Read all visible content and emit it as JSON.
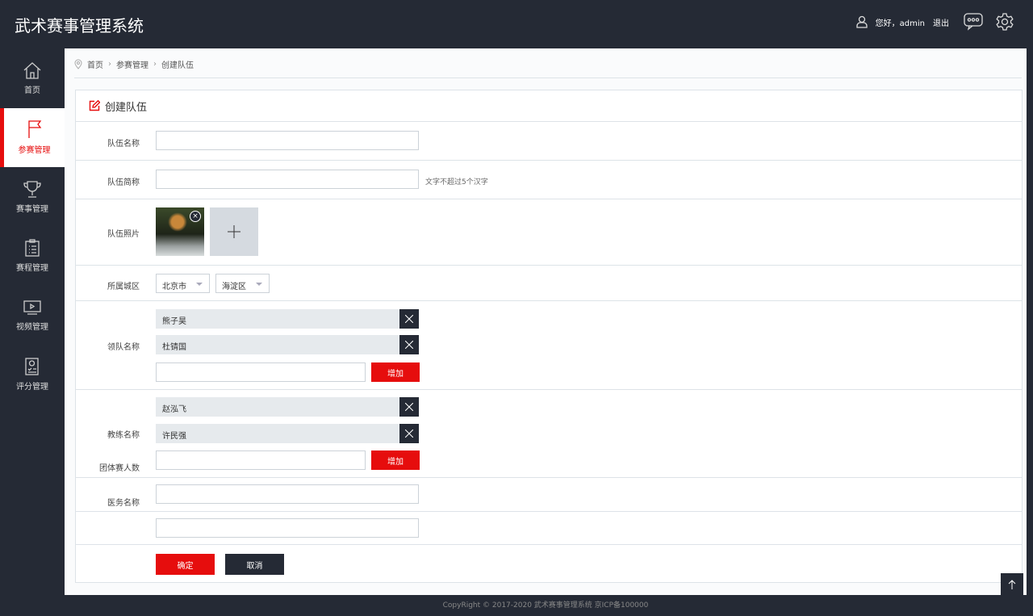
{
  "header": {
    "title": "武术赛事管理系统",
    "greeting": "您好，admin",
    "logout": "退出"
  },
  "sidebar": {
    "items": [
      {
        "label": "首页",
        "icon": "home-icon"
      },
      {
        "label": "参赛管理",
        "icon": "flag-icon",
        "active": true
      },
      {
        "label": "赛事管理",
        "icon": "trophy-icon"
      },
      {
        "label": "赛程管理",
        "icon": "clipboard-icon"
      },
      {
        "label": "视频管理",
        "icon": "video-icon"
      },
      {
        "label": "评分管理",
        "icon": "score-icon"
      }
    ]
  },
  "breadcrumb": [
    "首页",
    "参赛管理",
    "创建队伍"
  ],
  "form": {
    "title": "创建队伍",
    "team_name_label": "队伍名称",
    "team_name_value": "",
    "short_name_label": "队伍简称",
    "short_name_value": "",
    "short_name_hint": "文字不超过5个汉字",
    "photo_label": "队伍照片",
    "region_label": "所属城区",
    "city": "北京市",
    "district": "海淀区",
    "leader_label": "领队名称",
    "leaders": [
      "熊子昊",
      "杜锖国"
    ],
    "coach_label": "教练名称",
    "coaches": [
      "赵泓飞",
      "许民强"
    ],
    "team_count_label": "团体赛人数",
    "add_label": "增加",
    "medic_label": "医务名称",
    "confirm": "确定",
    "cancel": "取消"
  },
  "footer": "CopyRight © 2017-2020 武术赛事管理系统  京ICP备100000",
  "colors": {
    "accent": "#e60d0d",
    "dark": "#252a35"
  }
}
